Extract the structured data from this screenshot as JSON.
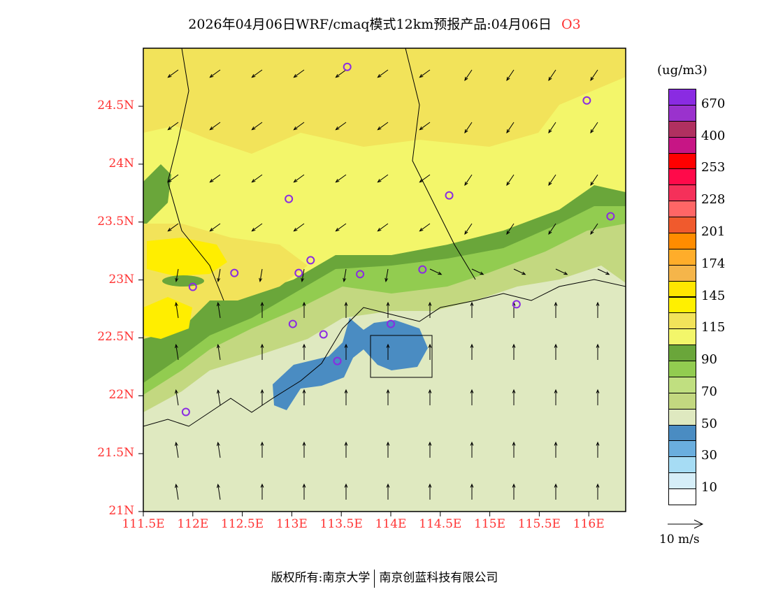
{
  "title": {
    "text": "2026年04月06日WRF/cmaq模式12km预报产品:04月06日",
    "species": "O3"
  },
  "axes": {
    "lat_labels": [
      "24.5N",
      "24N",
      "23.5N",
      "23N",
      "22.5N",
      "22N",
      "21.5N",
      "21N"
    ],
    "lat_values": [
      24.5,
      24,
      23.5,
      23,
      22.5,
      22,
      21.5,
      21
    ],
    "lon_labels": [
      "111.5E",
      "112E",
      "112.5E",
      "113E",
      "113.5E",
      "114E",
      "114.5E",
      "115E",
      "115.5E",
      "116E"
    ],
    "lon_values": [
      111.5,
      112,
      112.5,
      113,
      113.5,
      114,
      114.5,
      115,
      115.5,
      116
    ]
  },
  "legend": {
    "unit": "(ug/m3)",
    "colors": [
      "#8a2be2",
      "#9a32cd",
      "#b03060",
      "#c71585",
      "#ff0000",
      "#ff0a4a",
      "#f5305a",
      "#ff6666",
      "#f05a2d",
      "#ff8c00",
      "#ffad2a",
      "#f5b54a",
      "#ffe600",
      "#fff000",
      "#f2e35a",
      "#f3f66a",
      "#6aa63a",
      "#92cc50",
      "#c0df80",
      "#c3d880",
      "#dfe9c0",
      "#4a8cc2",
      "#6aaede",
      "#a6dcf4",
      "#d6eef8",
      "#ffffff"
    ],
    "labels": [
      "670",
      "400",
      "253",
      "228",
      "201",
      "174",
      "145",
      "115",
      "90",
      "70",
      "50",
      "30",
      "10"
    ],
    "wind_ref": "10 m/s"
  },
  "stations": [
    [
      113.56,
      24.84
    ],
    [
      115.98,
      24.55
    ],
    [
      112.97,
      23.7
    ],
    [
      114.59,
      23.73
    ],
    [
      116.22,
      23.55
    ],
    [
      113.19,
      23.17
    ],
    [
      112.42,
      23.06
    ],
    [
      113.07,
      23.06
    ],
    [
      113.69,
      23.05
    ],
    [
      114.32,
      23.09
    ],
    [
      112.0,
      22.94
    ],
    [
      115.27,
      22.79
    ],
    [
      113.01,
      22.62
    ],
    [
      113.32,
      22.53
    ],
    [
      114.0,
      22.62
    ],
    [
      113.46,
      22.3
    ],
    [
      111.93,
      21.86
    ]
  ],
  "footer": {
    "left": "版权所有:南京大学",
    "right": "南京创蓝科技有限公司"
  }
}
